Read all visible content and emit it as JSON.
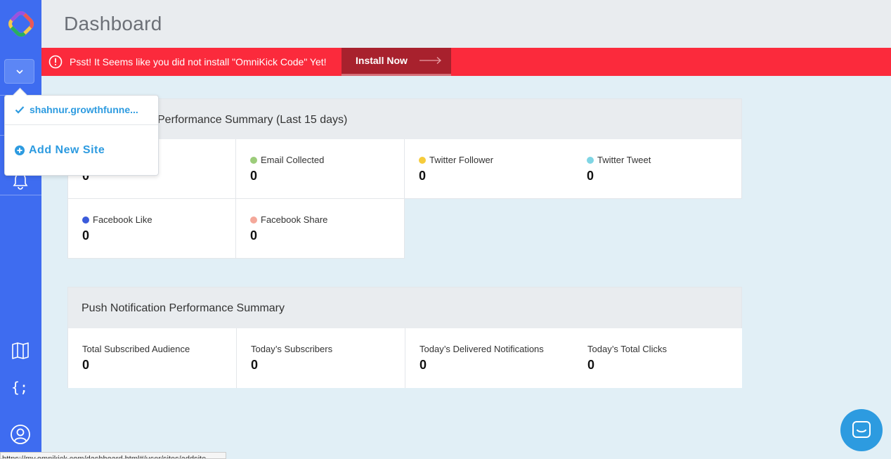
{
  "header": {
    "title": "Dashboard"
  },
  "banner": {
    "message": "Psst! It Seems like you did not install \"OmniKick Code\" Yet!",
    "install_label": "Install Now"
  },
  "site_menu": {
    "current_site": "shahnur.growthfunne...",
    "add_new_label": "Add New Site"
  },
  "performance": {
    "title_visible": "Performance Summary (Last 15 days)",
    "metrics": [
      {
        "label": "",
        "value": "0",
        "color": ""
      },
      {
        "label": "Email Collected",
        "value": "0",
        "color": "#9ccc7a"
      },
      {
        "label": "Twitter Follower",
        "value": "0",
        "color": "#f6cc3c"
      },
      {
        "label": "Twitter Tweet",
        "value": "0",
        "color": "#7fd5e4"
      },
      {
        "label": "Facebook Like",
        "value": "0",
        "color": "#3b5bdb"
      },
      {
        "label": "Facebook Share",
        "value": "0",
        "color": "#f4a89a"
      }
    ]
  },
  "push": {
    "title": "Push Notification Performance Summary",
    "metrics": [
      {
        "label": "Total Subscribed Audience",
        "value": "0"
      },
      {
        "label": "Today’s Subscribers",
        "value": "0"
      },
      {
        "label": "Today’s Delivered Notifications",
        "value": "0"
      },
      {
        "label": "Today’s Total Clicks",
        "value": "0"
      }
    ]
  },
  "statusbar": {
    "url": "https://my.omnikick.com/dashboard.html#/user/sites/addsite"
  },
  "colors": {
    "sidebar": "#3e6cf0",
    "banner": "#fb2a3c",
    "install_button": "#a8212d",
    "link": "#2d9be0"
  }
}
